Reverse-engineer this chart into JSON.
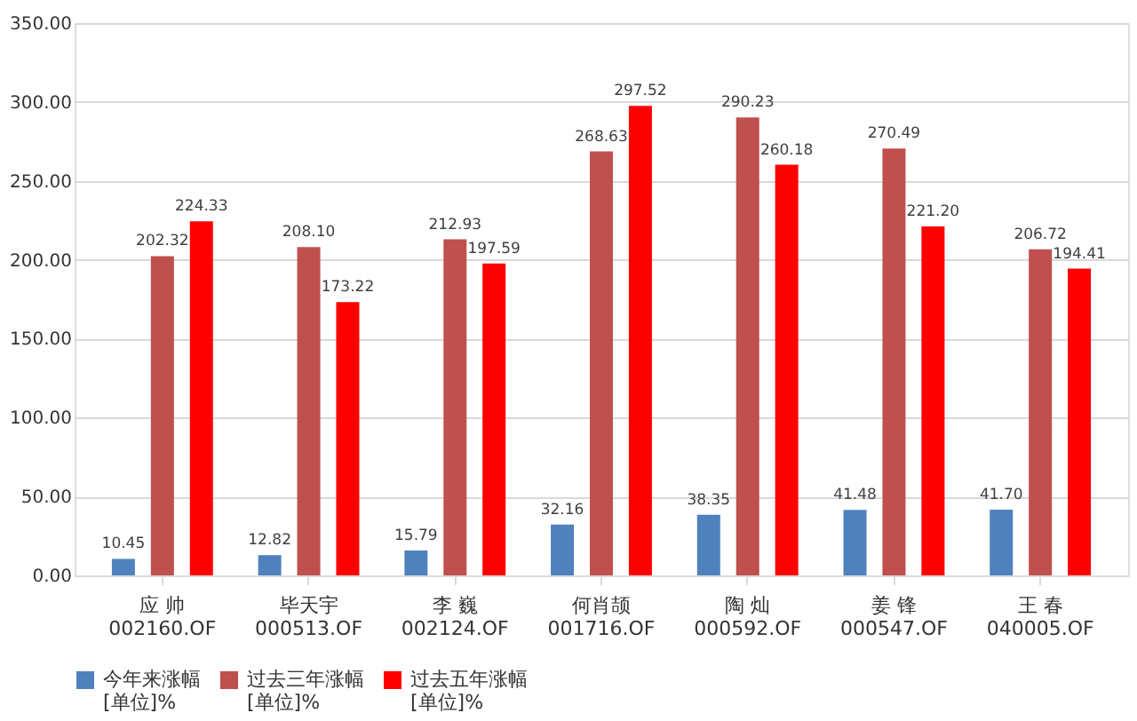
{
  "chart_data": {
    "type": "bar",
    "categories": [
      "应 帅\n002160.OF",
      "毕天宇\n000513.OF",
      "李 巍\n002124.OF",
      "何肖颉\n001716.OF",
      "陶 灿\n000592.OF",
      "姜 锋\n000547.OF",
      "王 春\n040005.OF"
    ],
    "series": [
      {
        "name": "今年来涨幅\n[单位]%",
        "color": "#4f81bd",
        "values": [
          10.45,
          12.82,
          15.79,
          32.16,
          38.35,
          41.48,
          41.7
        ],
        "value_labels": [
          "10.45",
          "12.82",
          "15.79",
          "32.16",
          "38.35",
          "41.48",
          "41.70"
        ]
      },
      {
        "name": "过去三年涨幅\n[单位]%",
        "color": "#c0504d",
        "values": [
          202.32,
          208.1,
          212.93,
          268.63,
          290.23,
          270.49,
          206.72
        ],
        "value_labels": [
          "202.32",
          "208.10",
          "212.93",
          "268.63",
          "290.23",
          "270.49",
          "206.72"
        ]
      },
      {
        "name": "过去五年涨幅\n[单位]%",
        "color": "#ff0000",
        "values": [
          224.33,
          173.22,
          197.59,
          297.52,
          260.18,
          221.2,
          194.41
        ],
        "value_labels": [
          "224.33",
          "173.22",
          "197.59",
          "297.52",
          "260.18",
          "221.20",
          "194.41"
        ]
      }
    ],
    "ylim": [
      0,
      350
    ],
    "yticks": [
      {
        "value": 0,
        "label": "0.00"
      },
      {
        "value": 50,
        "label": "50.00"
      },
      {
        "value": 100,
        "label": "100.00"
      },
      {
        "value": 150,
        "label": "150.00"
      },
      {
        "value": 200,
        "label": "200.00"
      },
      {
        "value": 250,
        "label": "250.00"
      },
      {
        "value": 300,
        "label": "300.00"
      },
      {
        "value": 350,
        "label": "350.00"
      }
    ],
    "grid": "y",
    "legend": "bottom"
  }
}
